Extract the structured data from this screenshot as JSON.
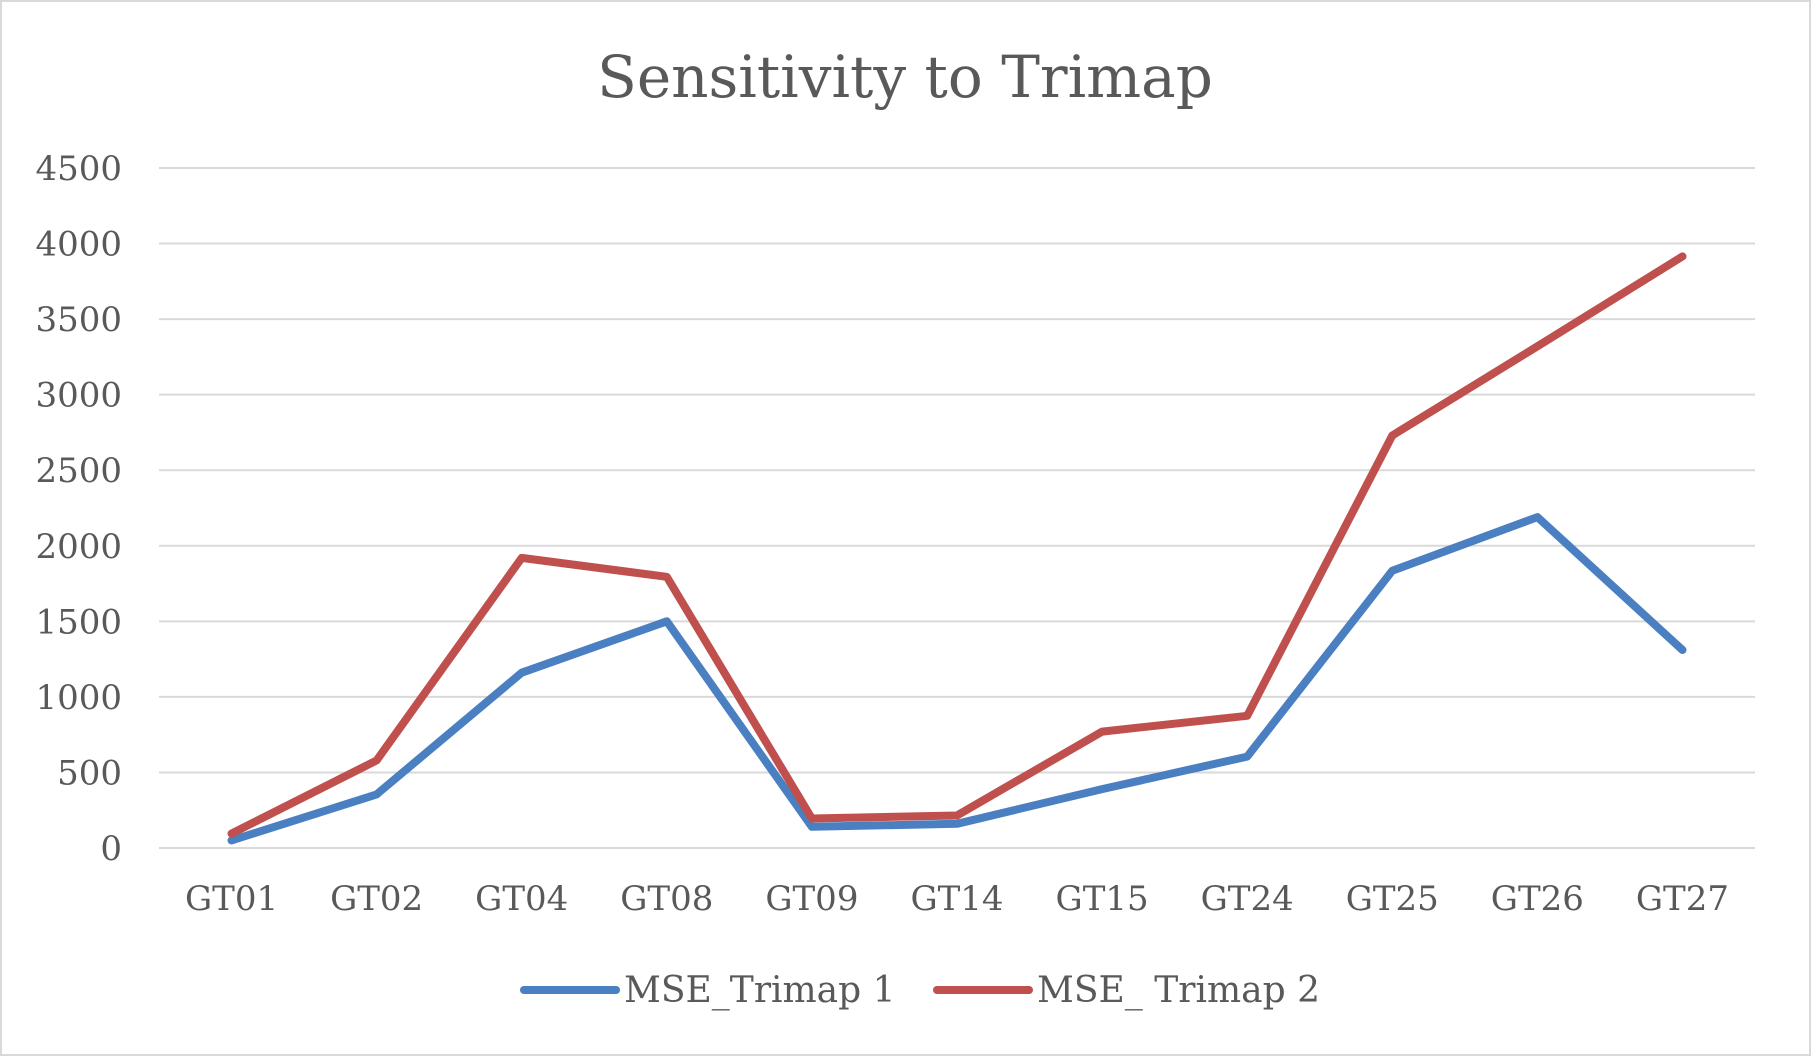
{
  "chart_data": {
    "type": "line",
    "title": "Sensitivity to Trimap",
    "xlabel": "",
    "ylabel": "",
    "categories": [
      "GT01",
      "GT02",
      "GT04",
      "GT08",
      "GT09",
      "GT14",
      "GT15",
      "GT24",
      "GT25",
      "GT26",
      "GT27"
    ],
    "ylim": [
      0,
      4500
    ],
    "yticks": [
      "0",
      "500",
      "1000",
      "1500",
      "2000",
      "2500",
      "3000",
      "3500",
      "4000",
      "4500"
    ],
    "grid": true,
    "legend_position": "bottom",
    "series": [
      {
        "name": "MSE_Trimap 1",
        "color": "#4a7fc1",
        "values": [
          50,
          355,
          1160,
          1500,
          140,
          160,
          390,
          605,
          1835,
          2190,
          1310
        ]
      },
      {
        "name": "MSE_ Trimap 2",
        "color": "#c0504d",
        "values": [
          95,
          580,
          1920,
          1795,
          195,
          215,
          770,
          875,
          2730,
          3320,
          3915
        ]
      }
    ]
  }
}
